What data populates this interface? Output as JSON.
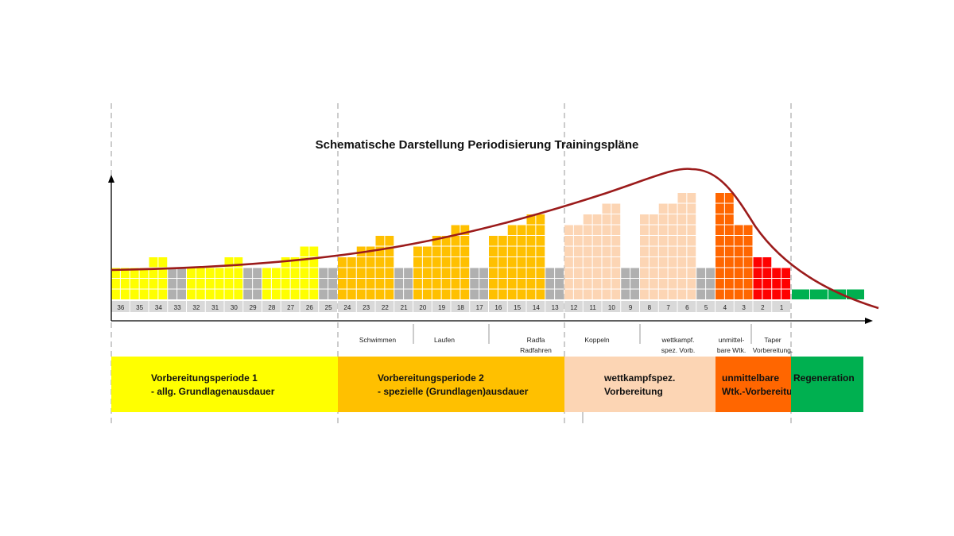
{
  "chart_data": {
    "type": "bar",
    "title": "Schematische Darstellung Periodisierung Trainingspläne",
    "weeks": [
      36,
      35,
      34,
      33,
      32,
      31,
      30,
      29,
      28,
      27,
      26,
      25,
      24,
      23,
      22,
      21,
      20,
      19,
      18,
      17,
      16,
      15,
      14,
      13,
      12,
      11,
      10,
      9,
      8,
      7,
      6,
      5,
      4,
      3,
      2,
      1
    ],
    "values": [
      3,
      3,
      4,
      3,
      3,
      3,
      4,
      3,
      3,
      4,
      5,
      3,
      4,
      5,
      6,
      3,
      5,
      6,
      7,
      3,
      6,
      7,
      8,
      3,
      7,
      8,
      9,
      3,
      8,
      9,
      10,
      3,
      10,
      7,
      4,
      3
    ],
    "segment_colors": [
      "#ffff00",
      "#ffff00",
      "#ffff00",
      "#b0b0b0",
      "#ffff00",
      "#ffff00",
      "#ffff00",
      "#b0b0b0",
      "#ffff00",
      "#ffff00",
      "#ffff00",
      "#b0b0b0",
      "#ffc000",
      "#ffc000",
      "#ffc000",
      "#b0b0b0",
      "#ffc000",
      "#ffc000",
      "#ffc000",
      "#b0b0b0",
      "#ffc000",
      "#ffc000",
      "#ffc000",
      "#b0b0b0",
      "#fcd5b4",
      "#fcd5b4",
      "#fcd5b4",
      "#b0b0b0",
      "#fcd5b4",
      "#fcd5b4",
      "#fcd5b4",
      "#b0b0b0",
      "#ff6600",
      "#ff6600",
      "#ff0000",
      "#ff0000"
    ],
    "regeneration": {
      "weeks": 4,
      "value": 1,
      "color": "#00b050"
    },
    "load_curve": {
      "color": "#9b1b1b",
      "description": "training load trend"
    },
    "sub_phases": [
      {
        "lines": [
          "Schwimmen"
        ]
      },
      {
        "lines": [
          "Laufen"
        ]
      },
      {
        "lines": [
          "Radfa",
          "Radfahren"
        ]
      },
      {
        "lines": [
          "Koppeln"
        ]
      },
      {
        "lines": [
          "wettkampf.",
          "spez. Vorb."
        ]
      },
      {
        "lines": [
          "unmittel-",
          "bare Wtk."
        ]
      },
      {
        "lines": [
          "Taper",
          "Vorbereitung."
        ]
      }
    ],
    "periods": [
      {
        "lines": [
          "Vorbereitungsperiode  1",
          " -  allg. Grundlagenausdauer"
        ],
        "color": "#ffff00"
      },
      {
        "lines": [
          "Vorbereitungsperiode  2",
          " -  spezielle (Grundlagen)ausdauer"
        ],
        "color": "#ffc000"
      },
      {
        "lines": [
          "wettkampfspez.",
          "Vorbereitung"
        ],
        "color": "#fcd5b4"
      },
      {
        "lines": [
          "unmittelbare",
          "Wtk.-Vorbereitung"
        ],
        "color": "#ff6600"
      },
      {
        "lines": [
          "Regeneration"
        ],
        "color": "#00b050"
      }
    ]
  }
}
